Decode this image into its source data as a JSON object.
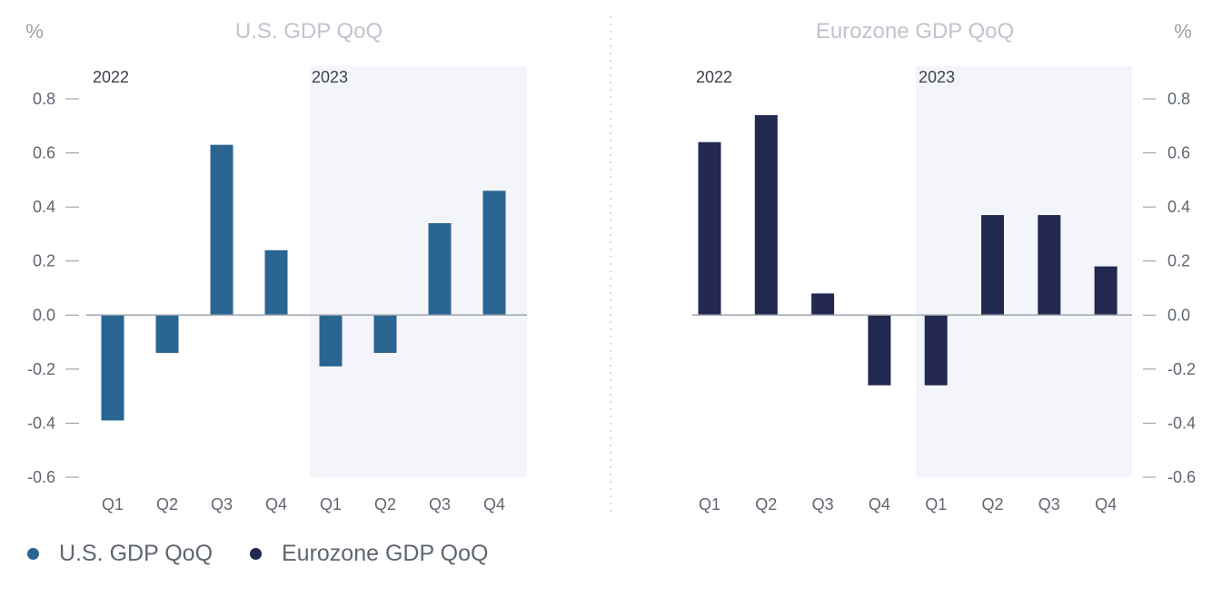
{
  "chart_data": [
    {
      "type": "bar",
      "title": "U.S. GDP QoQ",
      "unit": "%",
      "color": "#2a6592",
      "categories": [
        "Q1",
        "Q2",
        "Q3",
        "Q4",
        "Q1",
        "Q2",
        "Q3",
        "Q4"
      ],
      "year_labels": [
        "2022",
        "2023"
      ],
      "values": [
        -0.39,
        -0.14,
        0.63,
        0.24,
        -0.19,
        -0.14,
        0.34,
        0.46
      ],
      "ylim": [
        -0.6,
        0.8
      ],
      "yticks": [
        "0.8",
        "0.6",
        "0.4",
        "0.2",
        "0.0",
        "-0.2",
        "-0.4",
        "-0.6"
      ],
      "axis_side": "left",
      "highlight": "2023"
    },
    {
      "type": "bar",
      "title": "Eurozone GDP QoQ",
      "unit": "%",
      "color": "#22284f",
      "categories": [
        "Q1",
        "Q2",
        "Q3",
        "Q4",
        "Q1",
        "Q2",
        "Q3",
        "Q4"
      ],
      "year_labels": [
        "2022",
        "2023"
      ],
      "values": [
        0.64,
        0.74,
        0.08,
        -0.26,
        -0.26,
        0.37,
        0.37,
        0.18
      ],
      "ylim": [
        -0.6,
        0.8
      ],
      "yticks": [
        "0.8",
        "0.6",
        "0.4",
        "0.2",
        "0.0",
        "-0.2",
        "-0.4",
        "-0.6"
      ],
      "axis_side": "right",
      "highlight": "2023"
    }
  ],
  "legend": [
    {
      "label": "U.S. GDP QoQ",
      "color": "#2a6592"
    },
    {
      "label": "Eurozone GDP QoQ",
      "color": "#22284f"
    }
  ],
  "colors": {
    "highlight_band": "#f3f5fa",
    "zero_line": "#9ea4ad",
    "divider": "#c8ccd2"
  }
}
